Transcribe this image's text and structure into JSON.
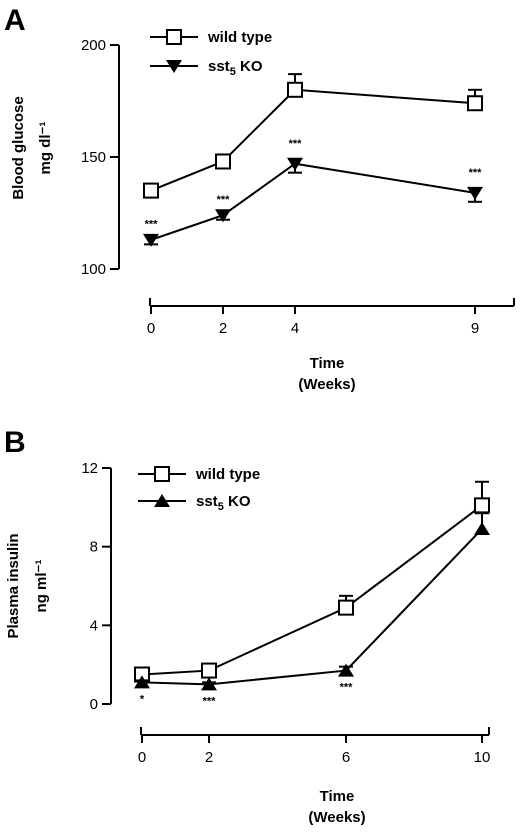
{
  "chart_data": [
    {
      "panel": "A",
      "type": "line",
      "ylabel": "Blood glucose",
      "ylabel_unit": "mg dl⁻¹",
      "xlabel": "Time",
      "xlabel_unit": "(Weeks)",
      "ylim": [
        100,
        200
      ],
      "xlim": [
        0,
        10
      ],
      "yticks": [
        100,
        150,
        200
      ],
      "xticks": [
        0,
        2,
        4,
        9
      ],
      "legend_position": "top-left",
      "series": [
        {
          "name": "wild type",
          "marker": "open-square",
          "x": [
            0,
            2,
            4,
            9
          ],
          "y": [
            135,
            148,
            180,
            174
          ],
          "error": [
            3,
            2,
            7,
            6
          ],
          "significance": [
            "",
            "",
            "",
            ""
          ]
        },
        {
          "name": "sst5 KO",
          "name_base": "sst",
          "name_sub": "5",
          "name_suffix": " KO",
          "marker": "filled-triangle-down",
          "x": [
            0,
            2,
            4,
            9
          ],
          "y": [
            113,
            124,
            147,
            134
          ],
          "error": [
            2,
            2,
            4,
            4
          ],
          "significance": [
            "***",
            "***",
            "***",
            "***"
          ]
        }
      ]
    },
    {
      "panel": "B",
      "type": "line",
      "ylabel": "Plasma insulin",
      "ylabel_unit": "ng ml⁻¹",
      "xlabel": "Time",
      "xlabel_unit": "(Weeks)",
      "ylim": [
        0,
        12
      ],
      "xlim": [
        0,
        10
      ],
      "yticks": [
        0,
        4,
        8,
        12
      ],
      "xticks": [
        0,
        2,
        6,
        10
      ],
      "legend_position": "top-left",
      "series": [
        {
          "name": "wild type",
          "marker": "open-square",
          "x": [
            0,
            2,
            6,
            10
          ],
          "y": [
            1.5,
            1.7,
            4.9,
            10.1
          ],
          "error": [
            0.2,
            0.2,
            0.6,
            1.2
          ],
          "significance": [
            "",
            "",
            "",
            ""
          ]
        },
        {
          "name": "sst5 KO",
          "name_base": "sst",
          "name_sub": "5",
          "name_suffix": " KO",
          "marker": "filled-triangle-up",
          "x": [
            0,
            2,
            6,
            10
          ],
          "y": [
            1.1,
            1.0,
            1.7,
            8.9
          ],
          "error": [
            0.1,
            0.1,
            0.2,
            0.8
          ],
          "significance": [
            "*",
            "***",
            "***",
            ""
          ]
        }
      ]
    }
  ]
}
